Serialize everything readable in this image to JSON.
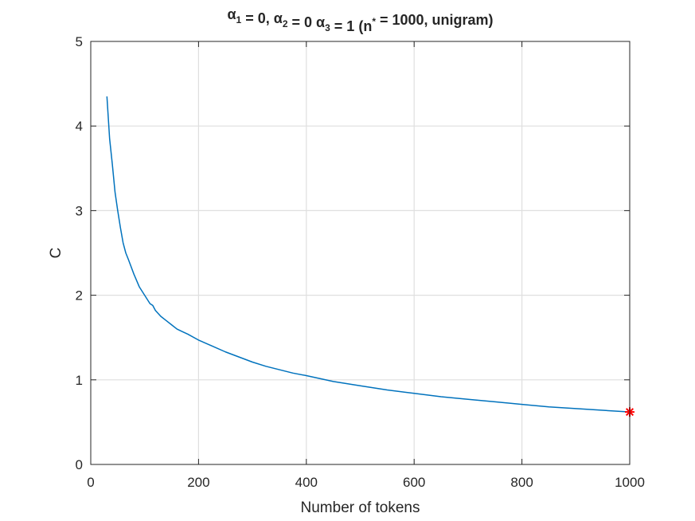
{
  "chart_data": {
    "type": "line",
    "title": {
      "segments": [
        {
          "text": "α",
          "sub": "1"
        },
        {
          "text": " = 0, "
        },
        {
          "text": "α",
          "sub": "2"
        },
        {
          "text": " = 0 "
        },
        {
          "text": "α",
          "sub": "3"
        },
        {
          "text": " = 1 (n"
        },
        {
          "text": "",
          "sup": "*"
        },
        {
          "text": " = 1000, unigram)"
        }
      ]
    },
    "xlabel": "Number of tokens",
    "ylabel": "C",
    "xlim": [
      0,
      1000
    ],
    "ylim": [
      0,
      5
    ],
    "xticks": [
      0,
      200,
      400,
      600,
      800,
      1000
    ],
    "yticks": [
      0,
      1,
      2,
      3,
      4,
      5
    ],
    "xtick_labels": [
      "0",
      "200",
      "400",
      "600",
      "800",
      "1000"
    ],
    "ytick_labels": [
      "0",
      "1",
      "2",
      "3",
      "4",
      "5"
    ],
    "grid": true,
    "series": [
      {
        "color": "#0072BD",
        "x": [
          30,
          35,
          40,
          45,
          50,
          55,
          60,
          65,
          70,
          80,
          90,
          100,
          110,
          115,
          120,
          130,
          140,
          150,
          160,
          170,
          180,
          200,
          225,
          250,
          275,
          300,
          325,
          350,
          375,
          400,
          450,
          500,
          550,
          600,
          650,
          700,
          750,
          800,
          850,
          900,
          950,
          1000
        ],
        "y": [
          4.35,
          3.85,
          3.55,
          3.22,
          3.0,
          2.8,
          2.62,
          2.5,
          2.42,
          2.25,
          2.1,
          2.0,
          1.9,
          1.88,
          1.82,
          1.75,
          1.7,
          1.65,
          1.6,
          1.57,
          1.54,
          1.47,
          1.4,
          1.33,
          1.27,
          1.21,
          1.16,
          1.12,
          1.08,
          1.05,
          0.98,
          0.93,
          0.88,
          0.84,
          0.8,
          0.77,
          0.74,
          0.71,
          0.68,
          0.66,
          0.64,
          0.62
        ]
      }
    ],
    "marker": {
      "x": 1000,
      "y": 0.62,
      "symbol": "asterisk",
      "color": "#ff0000"
    }
  }
}
